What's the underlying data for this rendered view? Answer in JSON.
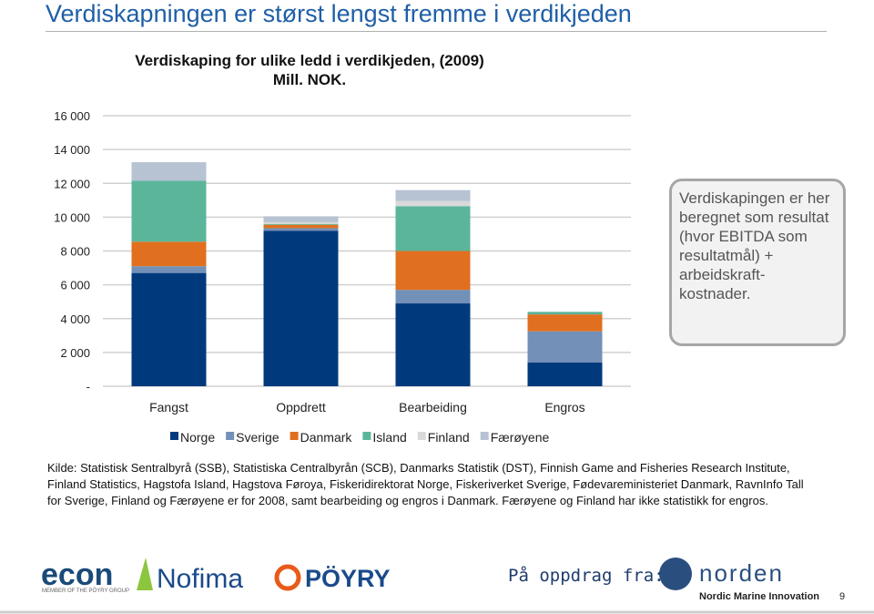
{
  "slide": {
    "title": "Verdiskapningen er størst lengst fremme i verdikjeden",
    "callout": "Verdiskapingen er her beregnet som resultat (hvor EBITDA som resultatmål) + arbeidskraft-kostnader.",
    "source": "Kilde: Statistisk Sentralbyrå (SSB), Statistiska Centralbyrån (SCB), Danmarks Statistik (DST), Finnish Game and Fisheries Research Institute, Finland Statistics, Hagstofa Island, Hagstova Føroya, Fiskeridirektorat Norge, Fiskeriverket Sverige, Fødevareministeriet Danmark, RavnInfo Tall for Sverige, Finland og Færøyene er for 2008, samt bearbeiding og engros i Danmark. Færøyene og Finland har ikke statistikk for engros.",
    "client_label": "På oppdrag fra:",
    "logos": [
      "econ",
      "MEMBER OF THE PÖYRY GROUP",
      "Nofima",
      "PÖYRY",
      "norden",
      "Nordic Marine Innovation"
    ],
    "page_number": "9"
  },
  "chart_data": {
    "type": "stacked-bar",
    "title": "Verdiskaping for ulike ledd i verdikjeden, (2009) Mill. NOK.",
    "categories": [
      "Fangst",
      "Oppdrett",
      "Bearbeiding",
      "Engros"
    ],
    "series": [
      {
        "name": "Norge",
        "color": "#003a7d",
        "values": [
          6700,
          9200,
          4900,
          1400
        ]
      },
      {
        "name": "Sverige",
        "color": "#7390b8",
        "values": [
          400,
          150,
          800,
          1850
        ]
      },
      {
        "name": "Danmark",
        "color": "#e07020",
        "values": [
          1450,
          200,
          2300,
          1000
        ]
      },
      {
        "name": "Island",
        "color": "#5bb59a",
        "values": [
          3600,
          50,
          2650,
          150
        ]
      },
      {
        "name": "Finland",
        "color": "#d9d9d9",
        "values": [
          0,
          100,
          300,
          0
        ]
      },
      {
        "name": "Færøyene",
        "color": "#b7c3d3",
        "values": [
          1100,
          350,
          650,
          0
        ]
      }
    ],
    "ylim": [
      0,
      16000
    ],
    "yticks": [
      {
        "value": 0,
        "label": "-"
      },
      {
        "value": 2000,
        "label": "2 000"
      },
      {
        "value": 4000,
        "label": "4 000"
      },
      {
        "value": 6000,
        "label": "6 000"
      },
      {
        "value": 8000,
        "label": "8 000"
      },
      {
        "value": 10000,
        "label": "10 000"
      },
      {
        "value": 12000,
        "label": "12 000"
      },
      {
        "value": 14000,
        "label": "14 000"
      },
      {
        "value": 16000,
        "label": "16 000"
      }
    ],
    "grid": true
  }
}
